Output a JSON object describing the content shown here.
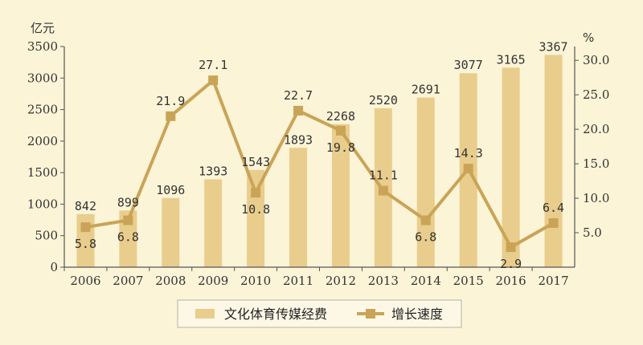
{
  "chart_data": {
    "type": "bar",
    "categories": [
      "2006",
      "2007",
      "2008",
      "2009",
      "2010",
      "2011",
      "2012",
      "2013",
      "2014",
      "2015",
      "2016",
      "2017"
    ],
    "series": [
      {
        "name": "文化体育传媒经费",
        "type": "bar",
        "axis": "left",
        "values": [
          842,
          899,
          1096,
          1393,
          1543,
          1893,
          2268,
          2520,
          2691,
          3077,
          3165,
          3367
        ],
        "labels": [
          "842",
          "899",
          "1096",
          "1393",
          "1543",
          "1893",
          "2268",
          "2520",
          "2691",
          "3077",
          "3165",
          "3367"
        ]
      },
      {
        "name": "增长速度",
        "type": "line",
        "axis": "right",
        "values": [
          5.8,
          6.8,
          21.9,
          27.1,
          10.8,
          22.7,
          19.8,
          11.1,
          6.8,
          14.3,
          2.9,
          6.4
        ],
        "labels": [
          "5.8",
          "6.8",
          "21.9",
          "27.1",
          "10.8",
          "22.7",
          "19.8",
          "11.1",
          "6.8",
          "14.3",
          "2.9",
          "6.4"
        ]
      }
    ],
    "left_axis": {
      "unit": "亿元",
      "ylim": [
        0,
        3500
      ],
      "ticks": [
        0,
        500,
        1000,
        1500,
        2000,
        2500,
        3000,
        3500
      ],
      "tick_labels": [
        "0",
        "500",
        "1000",
        "1500",
        "2000",
        "2500",
        "3000",
        "3500"
      ]
    },
    "right_axis": {
      "unit": "%",
      "ylim": [
        0,
        32
      ],
      "ticks": [
        5,
        10,
        15,
        20,
        25,
        30
      ],
      "tick_labels": [
        "5.0",
        "10.0",
        "15.0",
        "20.0",
        "25.0",
        "30.0"
      ]
    },
    "legend": {
      "position": "bottom",
      "items": [
        "文化体育传媒经费",
        "增长速度"
      ]
    },
    "grid": false
  },
  "colors": {
    "background": "#fbf4d7",
    "bar": "#e9cd8c",
    "line": "#c9a457",
    "axis": "#555555",
    "text": "#333333"
  }
}
